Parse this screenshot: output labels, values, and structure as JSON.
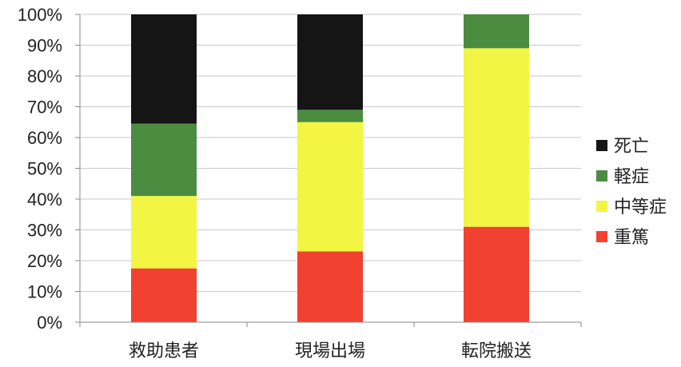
{
  "chart_data": {
    "type": "bar",
    "stacked": true,
    "percent_stacked": true,
    "categories": [
      "救助患者",
      "現場出場",
      "転院搬送"
    ],
    "series": [
      {
        "name": "重篤",
        "color": "#f04131",
        "values": [
          17.5,
          23,
          31
        ]
      },
      {
        "name": "中等症",
        "color": "#f3f543",
        "values": [
          23.5,
          42,
          58
        ]
      },
      {
        "name": "軽症",
        "color": "#4b8c40",
        "values": [
          23.5,
          4,
          11
        ]
      },
      {
        "name": "死亡",
        "color": "#151515",
        "values": [
          35.5,
          31,
          0
        ]
      }
    ],
    "y_ticks": [
      "0%",
      "10%",
      "20%",
      "30%",
      "40%",
      "50%",
      "60%",
      "70%",
      "80%",
      "90%",
      "100%"
    ],
    "ylim": [
      0,
      100
    ],
    "grid": "horizontal",
    "legend_position": "right",
    "legend_order": [
      "死亡",
      "軽症",
      "中等症",
      "重篤"
    ]
  }
}
